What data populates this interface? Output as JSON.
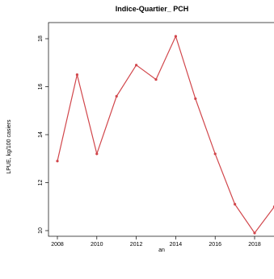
{
  "chart_data": {
    "type": "line",
    "title": "Indice-Quartier_ PCH",
    "xlabel": "an",
    "ylabel": "LPUE, kg/100 casiers",
    "xlim": [
      2007.7,
      2019.0
    ],
    "ylim": [
      9.7,
      18.4
    ],
    "x_ticks": [
      2008,
      2010,
      2012,
      2014,
      2016,
      2018
    ],
    "y_ticks": [
      10,
      12,
      14,
      16,
      18
    ],
    "grid": false,
    "legend": "none",
    "series": [
      {
        "color": "#d1464b",
        "x": [
          2008,
          2009,
          2010,
          2011,
          2012,
          2013,
          2014,
          2015,
          2016,
          2017,
          2018,
          2019
        ],
        "y": [
          12.9,
          16.5,
          13.2,
          15.6,
          16.9,
          16.3,
          18.1,
          15.5,
          13.2,
          11.1,
          9.9,
          11.0
        ]
      }
    ]
  }
}
